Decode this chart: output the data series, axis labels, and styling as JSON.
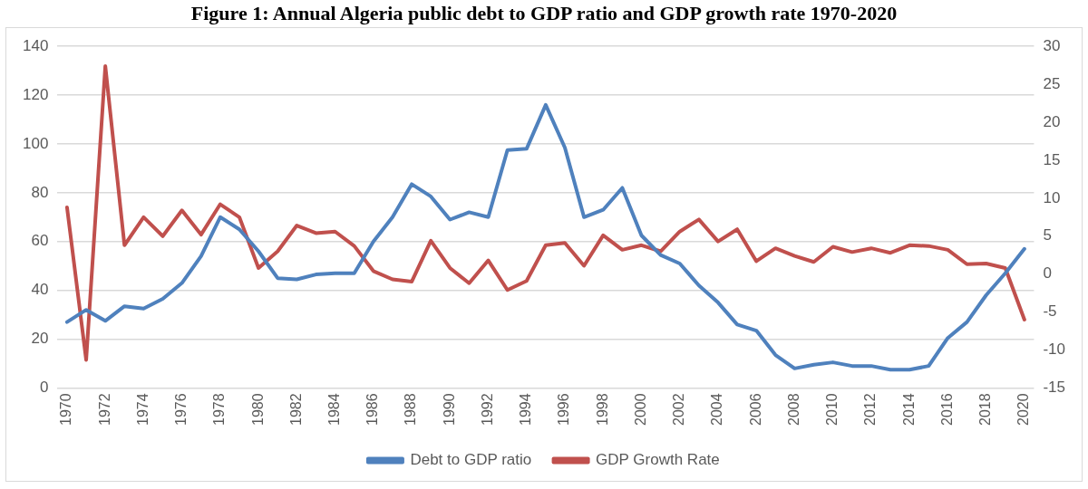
{
  "chart_data": {
    "type": "line",
    "title": "Figure 1: Annual Algeria public debt to GDP ratio and GDP growth rate 1970-2020",
    "categories": [
      "1970",
      null,
      "1972",
      null,
      "1974",
      null,
      "1976",
      null,
      "1978",
      null,
      "1980",
      null,
      "1982",
      null,
      "1984",
      null,
      "1986",
      null,
      "1988",
      null,
      "1990",
      null,
      "1992",
      null,
      "1994",
      null,
      "1996",
      null,
      "1998",
      null,
      "2000",
      null,
      "2002",
      null,
      "2004",
      null,
      "2006",
      null,
      "2008",
      null,
      "2010",
      null,
      "2012",
      null,
      "2014",
      null,
      "2016",
      null,
      "2018",
      null,
      "2020"
    ],
    "series": [
      {
        "name": "Debt to GDP ratio",
        "color": "#4f81bd",
        "values": [
          27,
          32,
          27.5,
          33.5,
          32.5,
          36.5,
          43,
          54,
          70,
          65,
          56,
          45,
          44.5,
          46.5,
          47,
          47,
          60,
          70,
          83.5,
          78.5,
          69,
          72,
          70,
          97.5,
          98,
          116,
          98.5,
          70,
          73,
          82,
          62.5,
          54.5,
          51,
          42,
          35,
          26,
          23.5,
          13.5,
          8,
          9.5,
          10.5,
          9,
          9,
          7.5,
          7.5,
          9,
          20.5,
          27,
          38,
          47,
          57
        ]
      },
      {
        "name": "GDP Growth Rate",
        "color": "#c0504d",
        "axis": "y2",
        "values": [
          8.8,
          -11.3,
          27.4,
          3.8,
          7.5,
          5,
          8.4,
          5.2,
          9.2,
          7.5,
          0.8,
          3,
          6.4,
          5.4,
          5.6,
          3.7,
          0.4,
          -0.7,
          -1,
          4.4,
          0.8,
          -1.2,
          1.8,
          -2.1,
          -0.9,
          3.8,
          4.1,
          1.1,
          5.1,
          3.2,
          3.8,
          3,
          5.6,
          7.2,
          4.3,
          5.9,
          1.7,
          3.4,
          2.4,
          1.6,
          3.6,
          2.9,
          3.4,
          2.8,
          3.8,
          3.7,
          3.2,
          1.3,
          1.4,
          0.8,
          -6
        ]
      }
    ],
    "ylim": [
      0,
      140
    ],
    "yticks": [
      0,
      20,
      40,
      60,
      80,
      100,
      120,
      140
    ],
    "y2lim": [
      -15,
      30
    ],
    "y2ticks": [
      -15,
      -10,
      -5,
      0,
      5,
      10,
      15,
      20,
      25,
      30
    ],
    "grid": "y",
    "legend": "bottom",
    "marker": "none",
    "line_style": "solid"
  }
}
